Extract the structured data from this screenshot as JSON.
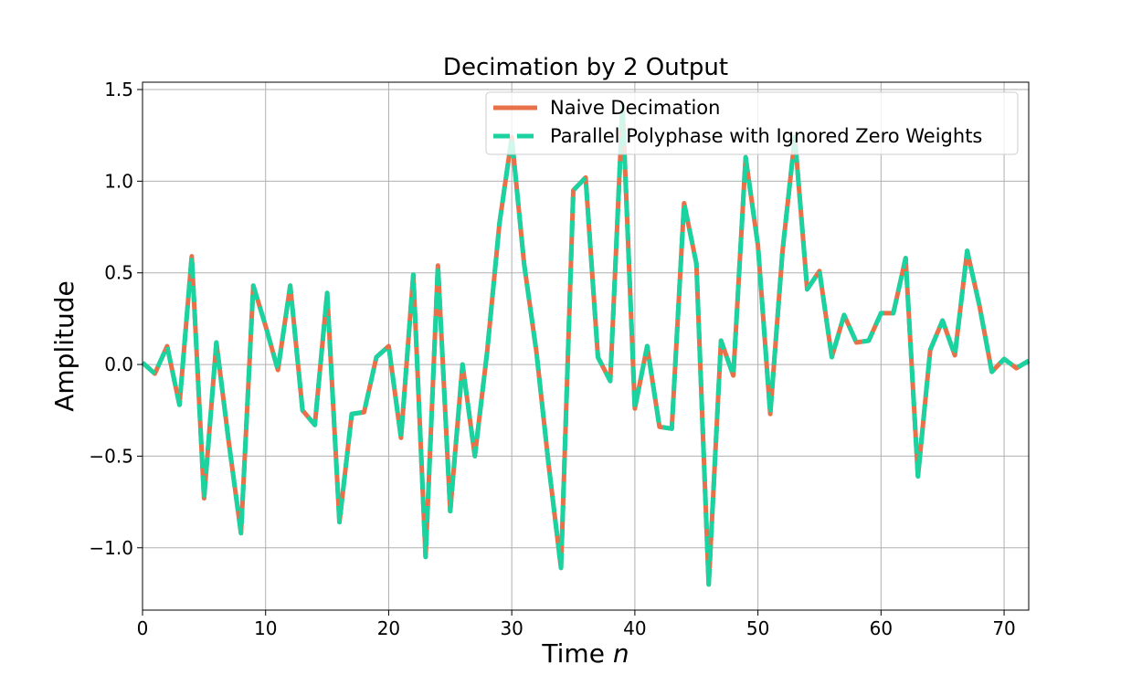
{
  "chart_data": {
    "type": "line",
    "title": "Decimation by 2 Output",
    "xlabel_text": "Time ",
    "xlabel_var": "n",
    "ylabel": "Amplitude",
    "xlim": [
      0,
      72
    ],
    "ylim": [
      -1.34,
      1.54
    ],
    "x_ticks": [
      0,
      10,
      20,
      30,
      40,
      50,
      60,
      70
    ],
    "x_tick_labels": [
      "0",
      "10",
      "20",
      "30",
      "40",
      "50",
      "60",
      "70"
    ],
    "y_ticks": [
      -1.0,
      -0.5,
      0.0,
      0.5,
      1.0,
      1.5
    ],
    "y_tick_labels": [
      "−1.0",
      "−0.5",
      "0.0",
      "0.5",
      "1.0",
      "1.5"
    ],
    "grid": true,
    "legend_position": "top-right",
    "x": [
      0,
      1,
      2,
      3,
      4,
      5,
      6,
      7,
      8,
      9,
      10,
      11,
      12,
      13,
      14,
      15,
      16,
      17,
      18,
      19,
      20,
      21,
      22,
      23,
      24,
      25,
      26,
      27,
      28,
      29,
      30,
      31,
      32,
      33,
      34,
      35,
      36,
      37,
      38,
      39,
      40,
      41,
      42,
      43,
      44,
      45,
      46,
      47,
      48,
      49,
      50,
      51,
      52,
      53,
      54,
      55,
      56,
      57,
      58,
      59,
      60,
      61,
      62,
      63,
      64,
      65,
      66,
      67,
      68,
      69,
      70,
      71,
      72
    ],
    "series": [
      {
        "name": "Naive Decimation",
        "color": "#e8714a",
        "style": "solid",
        "values": [
          0.01,
          -0.05,
          0.1,
          -0.22,
          0.59,
          -0.73,
          0.12,
          -0.42,
          -0.92,
          0.43,
          0.21,
          -0.03,
          0.43,
          -0.25,
          -0.33,
          0.39,
          -0.86,
          -0.27,
          -0.26,
          0.04,
          0.1,
          -0.4,
          0.49,
          -1.05,
          0.54,
          -0.8,
          0.0,
          -0.5,
          0.07,
          0.77,
          1.24,
          0.55,
          0.07,
          -0.55,
          -1.11,
          0.95,
          1.02,
          0.04,
          -0.09,
          1.41,
          -0.24,
          0.1,
          -0.34,
          -0.35,
          0.88,
          0.55,
          -1.2,
          0.13,
          -0.06,
          1.13,
          0.65,
          -0.27,
          0.62,
          1.24,
          0.41,
          0.51,
          0.04,
          0.27,
          0.12,
          0.13,
          0.28,
          0.28,
          0.58,
          -0.61,
          0.08,
          0.24,
          0.05,
          0.62,
          0.32,
          -0.04,
          0.03,
          -0.02,
          0.02
        ]
      },
      {
        "name": "Parallel Polyphase with Ignored Zero Weights",
        "color": "#1ad3a0",
        "style": "dashed",
        "values": [
          0.01,
          -0.05,
          0.1,
          -0.22,
          0.59,
          -0.73,
          0.12,
          -0.42,
          -0.92,
          0.43,
          0.21,
          -0.03,
          0.43,
          -0.25,
          -0.33,
          0.39,
          -0.86,
          -0.27,
          -0.26,
          0.04,
          0.1,
          -0.4,
          0.49,
          -1.05,
          0.54,
          -0.8,
          0.0,
          -0.5,
          0.07,
          0.77,
          1.24,
          0.55,
          0.07,
          -0.55,
          -1.11,
          0.95,
          1.02,
          0.04,
          -0.09,
          1.41,
          -0.24,
          0.1,
          -0.34,
          -0.35,
          0.88,
          0.55,
          -1.2,
          0.13,
          -0.06,
          1.13,
          0.65,
          -0.27,
          0.62,
          1.24,
          0.41,
          0.51,
          0.04,
          0.27,
          0.12,
          0.13,
          0.28,
          0.28,
          0.58,
          -0.61,
          0.08,
          0.24,
          0.05,
          0.62,
          0.32,
          -0.04,
          0.03,
          -0.02,
          0.02
        ]
      }
    ]
  }
}
